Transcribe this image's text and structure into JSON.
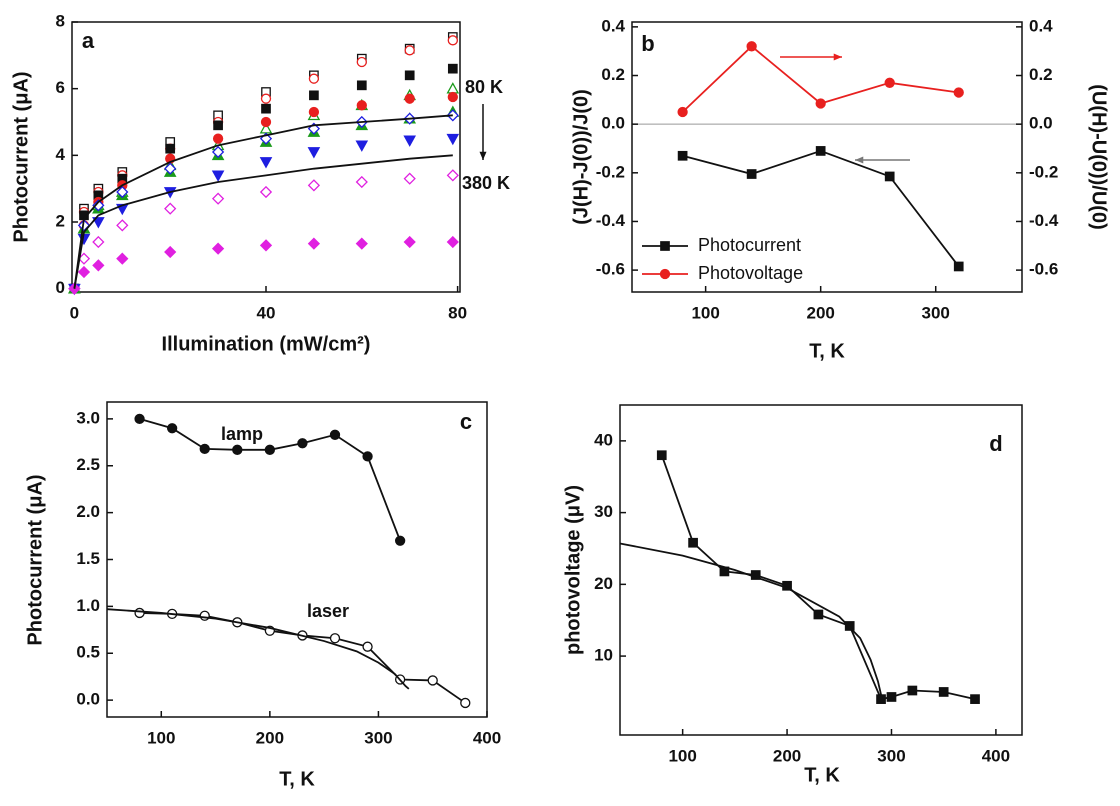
{
  "chart_data": [
    {
      "type": "line",
      "panel_label": "a",
      "xlabel": "Illumination (mW/cm²)",
      "ylabel": "Photocurrent (μA)",
      "annotations": [
        "80 K",
        "380 K"
      ],
      "xlim": [
        -0.5,
        80.5
      ],
      "ylim": [
        -0.1,
        8
      ],
      "xticks": [
        0,
        40,
        80
      ],
      "yticks": [
        0,
        2,
        4,
        6,
        8
      ],
      "x": [
        0,
        2,
        5,
        10,
        20,
        30,
        40,
        50,
        60,
        70,
        79
      ],
      "series": [
        {
          "color": "#111111",
          "marker": "square",
          "filled": false,
          "line": false,
          "values": [
            0,
            2.4,
            3.0,
            3.5,
            4.4,
            5.2,
            5.9,
            6.4,
            6.9,
            7.2,
            7.55
          ]
        },
        {
          "color": "#e8201f",
          "marker": "circle",
          "filled": false,
          "line": false,
          "values": [
            0,
            2.3,
            2.9,
            3.4,
            4.2,
            5.0,
            5.7,
            6.3,
            6.8,
            7.15,
            7.45
          ]
        },
        {
          "color": "#111111",
          "marker": "square",
          "filled": true,
          "line": false,
          "values": [
            0,
            2.2,
            2.8,
            3.3,
            4.2,
            4.9,
            5.4,
            5.8,
            6.1,
            6.4,
            6.6
          ]
        },
        {
          "color": "#1a9a1a",
          "marker": "triangle",
          "filled": false,
          "line": false,
          "values": [
            0,
            1.8,
            2.5,
            2.9,
            3.7,
            4.3,
            4.8,
            5.2,
            5.5,
            5.8,
            6.0
          ]
        },
        {
          "color": "#e8201f",
          "marker": "circle",
          "filled": true,
          "line": false,
          "values": [
            0,
            1.9,
            2.6,
            3.1,
            3.9,
            4.5,
            5.0,
            5.3,
            5.5,
            5.7,
            5.75
          ]
        },
        {
          "color": "#1a9a1a",
          "marker": "triangle",
          "filled": true,
          "line": false,
          "values": [
            0,
            1.8,
            2.4,
            2.8,
            3.5,
            4.0,
            4.4,
            4.7,
            4.9,
            5.1,
            5.3
          ]
        },
        {
          "color": "#1e1ee0",
          "marker": "diamond",
          "filled": false,
          "line": false,
          "values": [
            0,
            1.9,
            2.5,
            2.9,
            3.6,
            4.1,
            4.5,
            4.8,
            5.0,
            5.1,
            5.2
          ]
        },
        {
          "color": "#1e1ee0",
          "marker": "down-triangle",
          "filled": true,
          "line": false,
          "values": [
            0,
            1.5,
            2.0,
            2.4,
            2.9,
            3.4,
            3.8,
            4.1,
            4.3,
            4.45,
            4.5
          ]
        },
        {
          "color": "#e020e0",
          "marker": "diamond",
          "filled": false,
          "line": false,
          "values": [
            0,
            0.9,
            1.4,
            1.9,
            2.4,
            2.7,
            2.9,
            3.1,
            3.2,
            3.3,
            3.4
          ]
        },
        {
          "color": "#e020e0",
          "marker": "diamond",
          "filled": true,
          "line": false,
          "values": [
            0,
            0.5,
            0.7,
            0.9,
            1.1,
            1.2,
            1.3,
            1.35,
            1.35,
            1.4,
            1.4
          ]
        },
        {
          "color": "#111111",
          "marker": "none",
          "line": true,
          "values": [
            0,
            2.1,
            2.6,
            3.1,
            3.8,
            4.3,
            4.6,
            4.9,
            5.0,
            5.1,
            5.2
          ]
        },
        {
          "color": "#111111",
          "marker": "none",
          "line": true,
          "values": [
            0,
            1.7,
            2.2,
            2.5,
            2.9,
            3.2,
            3.4,
            3.6,
            3.75,
            3.9,
            4.0
          ]
        }
      ]
    },
    {
      "type": "line",
      "panel_label": "b",
      "xlabel": "T, K",
      "ylabel": "(J(H)-J(0))/J(0)",
      "y2label": "(U(H)-U(0))/U(0)",
      "xlim": [
        36,
        375
      ],
      "ylim": [
        -0.69,
        0.42
      ],
      "y2lim": [
        -0.69,
        0.42
      ],
      "zero_line": true,
      "legend": "lower left",
      "xticks": [
        100,
        200,
        300
      ],
      "yticks": [
        0.4,
        0.2,
        {
          "value": 0,
          "label": "0.0"
        },
        -0.2,
        -0.4,
        -0.6
      ],
      "y2ticks": [
        0.4,
        0.2,
        {
          "value": 0,
          "label": "0.0"
        },
        -0.2,
        -0.4,
        -0.6
      ],
      "x": [
        80,
        140,
        200,
        260,
        320
      ],
      "series": [
        {
          "name": "Photocurrent",
          "color": "#111111",
          "marker": "square",
          "filled": true,
          "line": true,
          "values": [
            -0.13,
            -0.205,
            -0.11,
            -0.215,
            -0.585
          ]
        },
        {
          "name": "Photovoltage",
          "color": "#e8201f",
          "marker": "circle",
          "filled": true,
          "line": true,
          "axis": "y2",
          "values": [
            0.05,
            0.32,
            0.085,
            0.17,
            0.13
          ]
        }
      ]
    },
    {
      "type": "line",
      "panel_label": "c",
      "xlabel": "T, K",
      "ylabel": "Photocurrent (μA)",
      "annotations": [
        "lamp",
        "laser"
      ],
      "xlim": [
        50,
        400
      ],
      "ylim": [
        -0.18,
        3.18
      ],
      "xticks": [
        100,
        200,
        300,
        400
      ],
      "yticks": [
        {
          "value": 0,
          "label": "0.0"
        },
        0.5,
        {
          "value": 1,
          "label": "1.0"
        },
        1.5,
        {
          "value": 2,
          "label": "2.0"
        },
        2.5,
        {
          "value": 3,
          "label": "3.0"
        }
      ],
      "series": [
        {
          "color": "#111111",
          "marker": "circle",
          "filled": true,
          "line": true,
          "x": [
            80,
            110,
            140,
            170,
            200,
            230,
            260,
            290,
            320
          ],
          "values": [
            3.0,
            2.9,
            2.68,
            2.67,
            2.67,
            2.74,
            2.83,
            2.6,
            1.7
          ]
        },
        {
          "color": "#111111",
          "marker": "circle",
          "filled": false,
          "line": true,
          "x": [
            80,
            110,
            140,
            170,
            200,
            230,
            260,
            290,
            320,
            350,
            380
          ],
          "values": [
            0.93,
            0.92,
            0.9,
            0.83,
            0.74,
            0.69,
            0.66,
            0.57,
            0.22,
            0.21,
            -0.03
          ]
        },
        {
          "color": "#111111",
          "marker": "none",
          "line": true,
          "x": [
            50,
            100,
            150,
            200,
            250,
            280,
            300,
            315,
            325,
            328
          ],
          "values": [
            0.97,
            0.93,
            0.87,
            0.77,
            0.63,
            0.52,
            0.4,
            0.28,
            0.15,
            0.12
          ]
        }
      ]
    },
    {
      "type": "line",
      "panel_label": "d",
      "xlabel": "T, K",
      "ylabel": "photovoltage (μV)",
      "xlim": [
        40,
        425
      ],
      "ylim": [
        -1,
        45
      ],
      "xticks": [
        100,
        200,
        300,
        400
      ],
      "yticks": [
        10,
        20,
        30,
        40
      ],
      "series": [
        {
          "color": "#111111",
          "marker": "square",
          "filled": true,
          "line": true,
          "x": [
            80,
            110,
            140,
            170,
            200,
            230,
            260,
            290,
            300,
            320,
            350,
            380
          ],
          "values": [
            38,
            25.8,
            21.8,
            21.3,
            19.8,
            15.8,
            14.2,
            4,
            4.3,
            5.2,
            5,
            4
          ]
        },
        {
          "color": "#111111",
          "marker": "none",
          "line": true,
          "x": [
            40,
            100,
            150,
            200,
            250,
            270,
            280,
            287,
            291
          ],
          "values": [
            25.7,
            24,
            22,
            19.5,
            15.5,
            12.5,
            9.5,
            6.5,
            4
          ]
        }
      ]
    }
  ]
}
